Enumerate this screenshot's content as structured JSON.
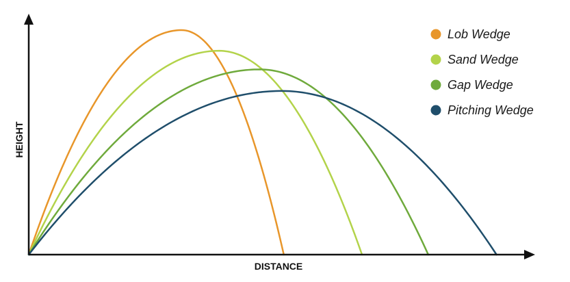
{
  "chart_data": {
    "type": "line",
    "title": "",
    "xlabel": "DISTANCE",
    "ylabel": "HEIGHT",
    "grid": false,
    "legend_position": "top-right",
    "xlim": [
      0,
      100
    ],
    "ylim": [
      0,
      100
    ],
    "series": [
      {
        "name": "Lob Wedge",
        "color": "#E8962A",
        "peak_x": 30.7,
        "peak_y": 100.0,
        "carry": 51.2
      },
      {
        "name": "Sand Wedge",
        "color": "#B3D34A",
        "peak_x": 38.2,
        "peak_y": 90.8,
        "carry": 66.9
      },
      {
        "name": "Gap Wedge",
        "color": "#6FAA3C",
        "peak_x": 46.4,
        "peak_y": 82.5,
        "carry": 80.2
      },
      {
        "name": "Pitching Wedge",
        "color": "#1F4E6B",
        "peak_x": 50.8,
        "peak_y": 72.9,
        "carry": 93.9
      }
    ]
  }
}
